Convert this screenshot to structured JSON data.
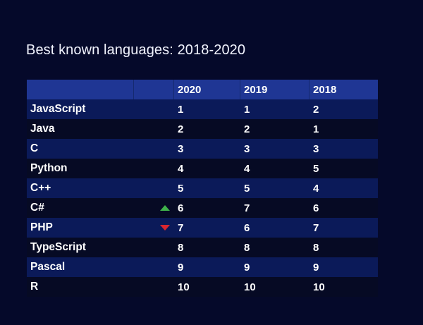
{
  "title": "Best known languages: 2018-2020",
  "chart_data": {
    "type": "table",
    "title": "Best known languages: 2018-2020",
    "columns": [
      "",
      "",
      "2020",
      "2019",
      "2018"
    ],
    "rows": [
      {
        "language": "JavaScript",
        "trend": "",
        "y2020": "1",
        "y2019": "1",
        "y2018": "2"
      },
      {
        "language": "Java",
        "trend": "",
        "y2020": "2",
        "y2019": "2",
        "y2018": "1"
      },
      {
        "language": "C",
        "trend": "",
        "y2020": "3",
        "y2019": "3",
        "y2018": "3"
      },
      {
        "language": "Python",
        "trend": "",
        "y2020": "4",
        "y2019": "4",
        "y2018": "5"
      },
      {
        "language": "C++",
        "trend": "",
        "y2020": "5",
        "y2019": "5",
        "y2018": "4"
      },
      {
        "language": "C#",
        "trend": "up",
        "y2020": "6",
        "y2019": "7",
        "y2018": "6"
      },
      {
        "language": "PHP",
        "trend": "down",
        "y2020": "7",
        "y2019": "6",
        "y2018": "7"
      },
      {
        "language": "TypeScript",
        "trend": "",
        "y2020": "8",
        "y2019": "8",
        "y2018": "8"
      },
      {
        "language": "Pascal",
        "trend": "",
        "y2020": "9",
        "y2019": "9",
        "y2018": "9"
      },
      {
        "language": "R",
        "trend": "",
        "y2020": "10",
        "y2019": "10",
        "y2018": "10"
      }
    ]
  },
  "colors": {
    "background": "#05092a",
    "header": "#1f3694",
    "row_band": "#0b1a59",
    "trend_up": "#3fb24a",
    "trend_down": "#d8262f"
  },
  "icons": {
    "up": "triangle-up-icon",
    "down": "triangle-down-icon"
  }
}
